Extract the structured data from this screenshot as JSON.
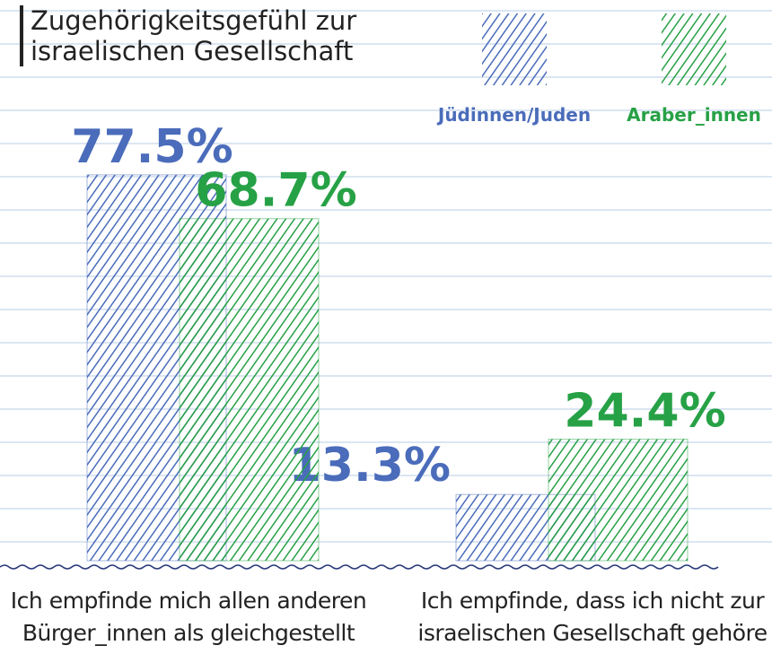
{
  "chart_data": {
    "type": "bar",
    "title": "Zugehörigkeitsgefühl zur israelischen Gesellschaft",
    "categories": [
      "Ich empfinde mich allen anderen Bürger_innen als gleichgestellt",
      "Ich empfinde, dass ich nicht zur israelischen Gesellschaft gehöre"
    ],
    "series": [
      {
        "name": "Jüdinnen/Juden",
        "color": "#4a6cba",
        "values": [
          77.5,
          13.3
        ],
        "value_labels": [
          "77.5%",
          "13.3%"
        ]
      },
      {
        "name": "Araber_innen",
        "color": "#27a146",
        "values": [
          68.7,
          24.4
        ],
        "value_labels": [
          "68.7%",
          "24.4%"
        ]
      }
    ],
    "ylim": [
      0,
      100
    ],
    "legend": "top-right"
  }
}
